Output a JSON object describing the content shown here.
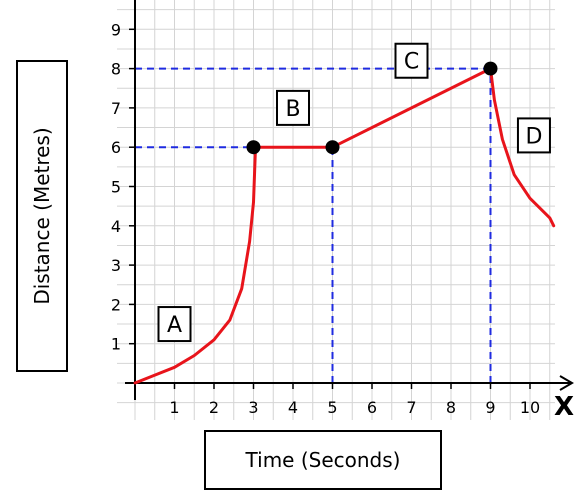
{
  "chart_data": {
    "type": "line",
    "xlabel": "Time (Seconds)",
    "ylabel": "Distance (Metres)",
    "x_axis_letter": "X",
    "xlim": [
      0,
      11
    ],
    "ylim": [
      0,
      9
    ],
    "x_ticks": [
      "1",
      "2",
      "3",
      "4",
      "5",
      "6",
      "7",
      "8",
      "9",
      "10"
    ],
    "y_ticks": [
      "1",
      "2",
      "3",
      "4",
      "5",
      "6",
      "7",
      "8",
      "9"
    ],
    "grid": true,
    "series": [
      {
        "color": "#e8141b",
        "points": [
          [
            0,
            0
          ],
          [
            0.5,
            0.2
          ],
          [
            1,
            0.4
          ],
          [
            1.5,
            0.7
          ],
          [
            2,
            1.1
          ],
          [
            2.4,
            1.6
          ],
          [
            2.7,
            2.4
          ],
          [
            2.9,
            3.6
          ],
          [
            3,
            4.6
          ],
          [
            3.05,
            6
          ],
          [
            5,
            6
          ],
          [
            9,
            8
          ],
          [
            9.1,
            7.2
          ],
          [
            9.3,
            6.2
          ],
          [
            9.6,
            5.3
          ],
          [
            10,
            4.7
          ],
          [
            10.5,
            4.2
          ],
          [
            10.6,
            4.0
          ]
        ]
      }
    ],
    "markers": [
      [
        3,
        6
      ],
      [
        5,
        6
      ],
      [
        9,
        8
      ]
    ],
    "reference_lines": [
      {
        "x": [
          0,
          5
        ],
        "y": [
          6,
          6
        ]
      },
      {
        "x": [
          0,
          9
        ],
        "y": [
          8,
          8
        ]
      },
      {
        "x": [
          5,
          5
        ],
        "y": [
          0,
          6
        ]
      },
      {
        "x": [
          9,
          9
        ],
        "y": [
          0,
          8
        ]
      }
    ],
    "annotations": [
      {
        "text": "A",
        "x": 1,
        "y": 1.5
      },
      {
        "text": "B",
        "x": 4,
        "y": 7
      },
      {
        "text": "C",
        "x": 7,
        "y": 8.2
      },
      {
        "text": "D",
        "x": 10.1,
        "y": 6.3
      }
    ]
  }
}
